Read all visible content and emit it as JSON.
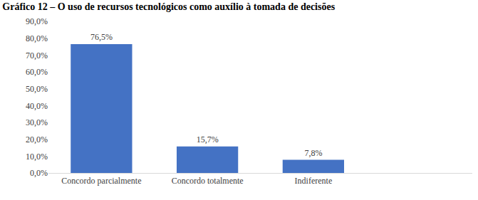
{
  "chart_data": {
    "type": "bar",
    "title": "Gráfico 12 – O uso de recursos tecnológicos como auxílio à tomada de decisões",
    "categories": [
      "Concordo parcialmente",
      "Concordo totalmente",
      "Indiferente",
      null
    ],
    "values": [
      76.5,
      15.7,
      7.8,
      null
    ],
    "value_labels": [
      "76,5%",
      "15,7%",
      "7,8%",
      null
    ],
    "data_labels": true,
    "color": "#4472c4",
    "ylim": [
      0,
      90
    ],
    "yticks": [
      {
        "value": 0,
        "label": "0,0%"
      },
      {
        "value": 10,
        "label": "10,0%"
      },
      {
        "value": 20,
        "label": "20,0%"
      },
      {
        "value": 30,
        "label": "30,0%"
      },
      {
        "value": 40,
        "label": "40,0%"
      },
      {
        "value": 50,
        "label": "50,0%"
      },
      {
        "value": 60,
        "label": "60,0%"
      },
      {
        "value": 70,
        "label": "70,0%"
      },
      {
        "value": 80,
        "label": "80,0%"
      },
      {
        "value": 90,
        "label": "90,0%"
      }
    ],
    "grid": false
  }
}
